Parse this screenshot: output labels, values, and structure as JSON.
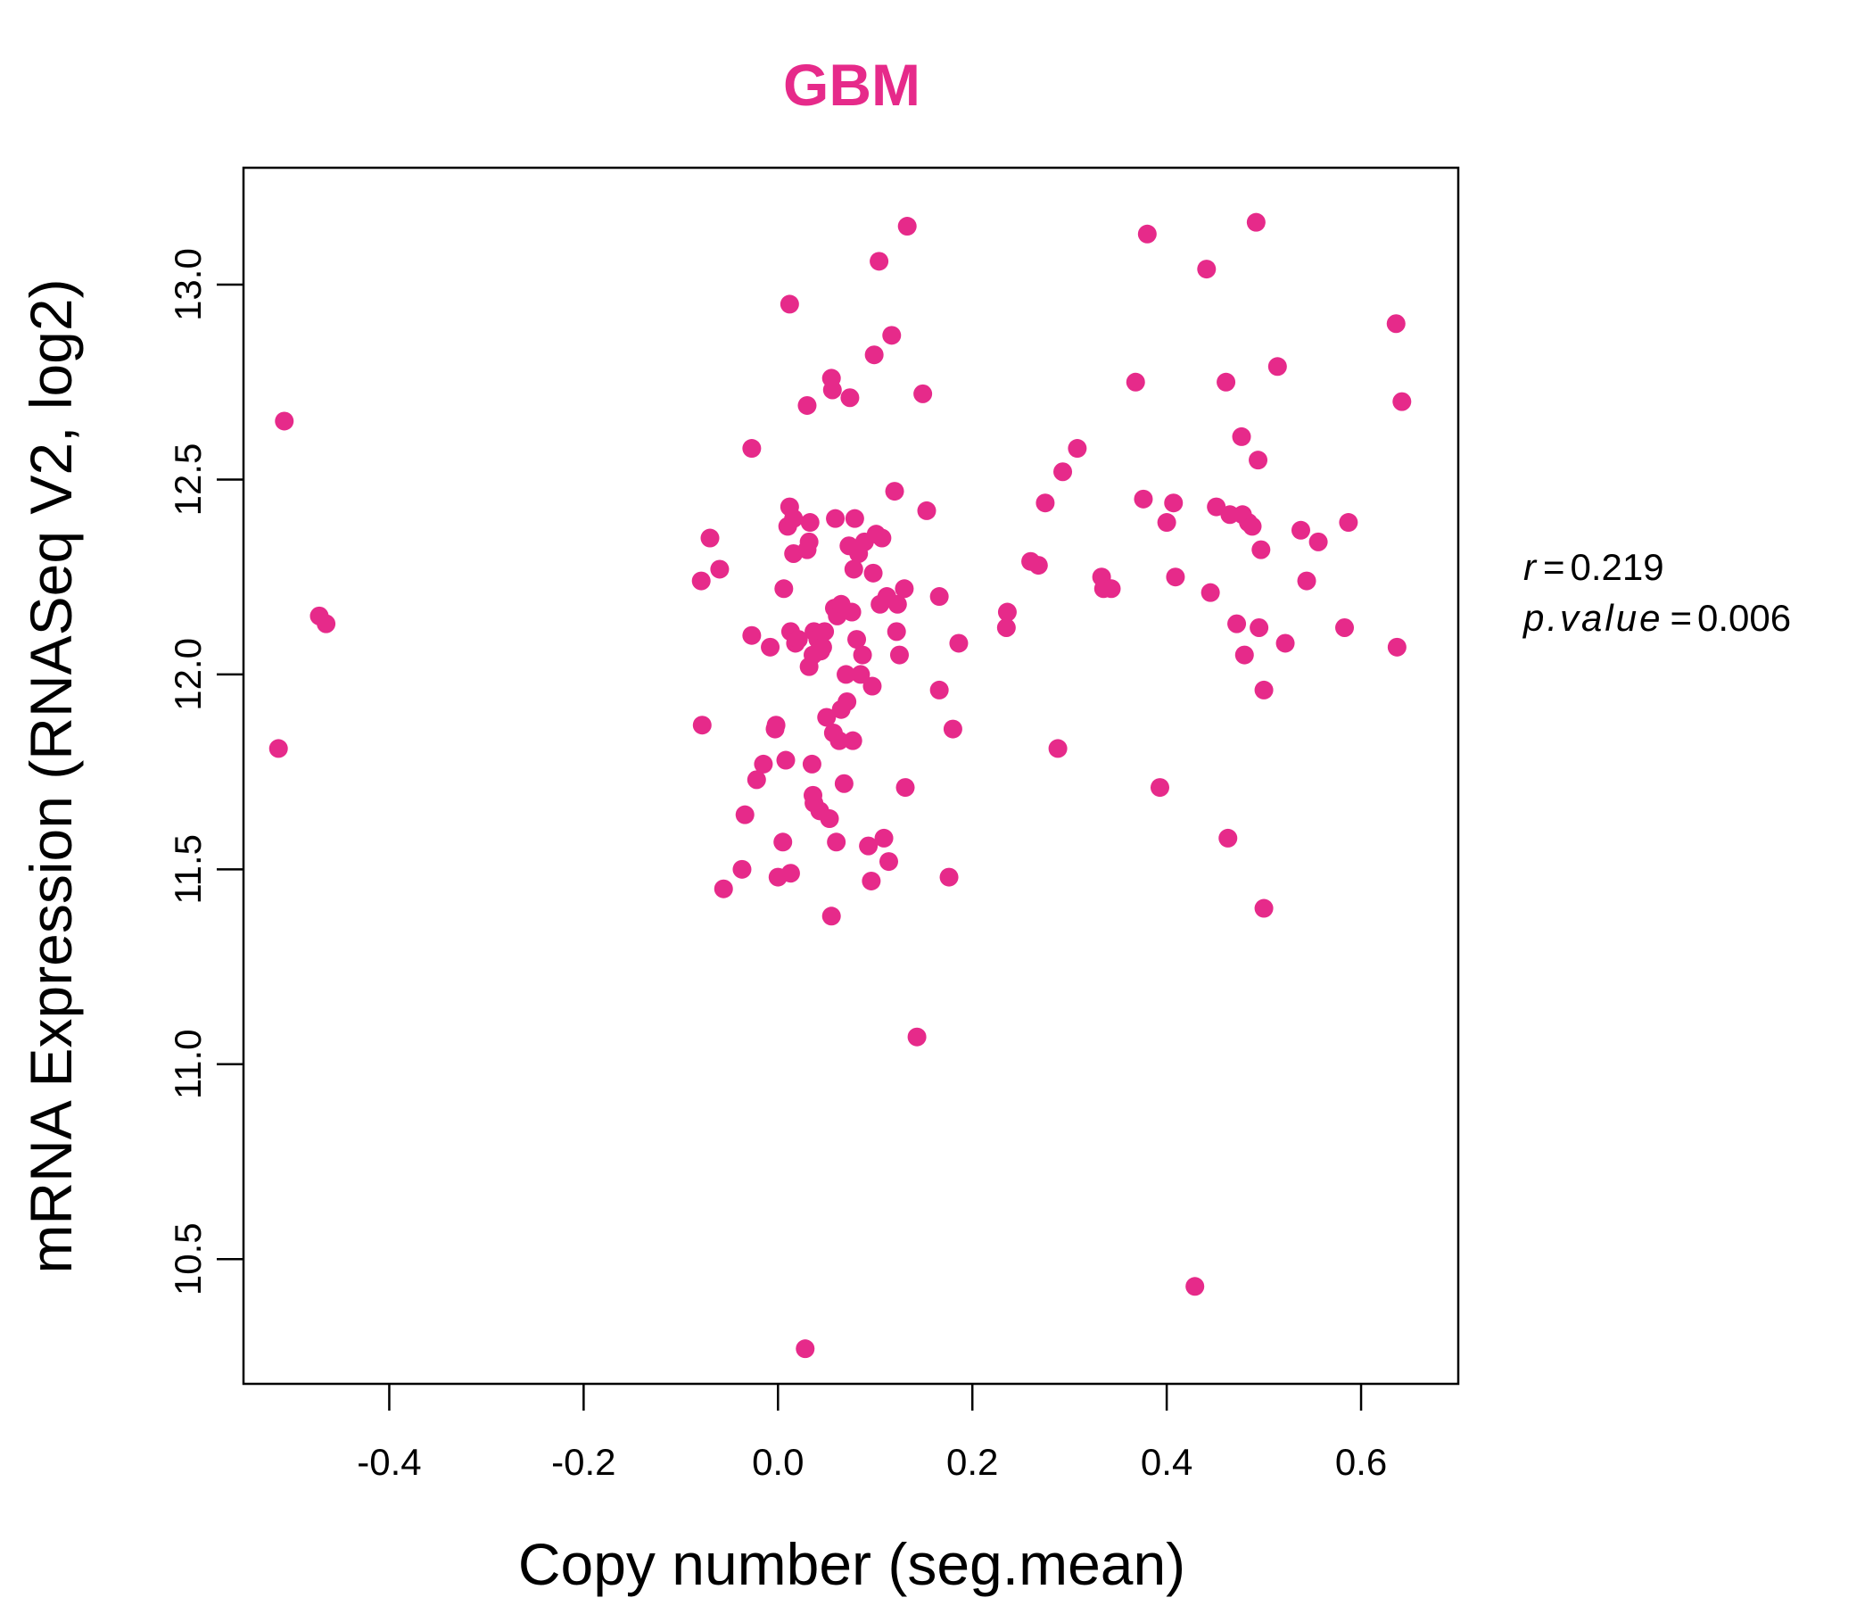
{
  "chart_data": {
    "type": "scatter",
    "title": "GBM",
    "xlabel": "Copy number (seg.mean)",
    "ylabel": "mRNA Expression (RNASeq V2, log2)",
    "xlim": [
      -0.55,
      0.7
    ],
    "ylim": [
      10.18,
      13.3
    ],
    "x_ticks": [
      -0.4,
      -0.2,
      0.0,
      0.2,
      0.4,
      0.6
    ],
    "x_tick_labels": [
      "-0.4",
      "-0.2",
      "0.0",
      "0.2",
      "0.4",
      "0.6"
    ],
    "y_ticks": [
      10.5,
      11.0,
      11.5,
      12.0,
      12.5,
      13.0
    ],
    "y_tick_labels": [
      "10.5",
      "11.0",
      "11.5",
      "12.0",
      "12.5",
      "13.0"
    ],
    "grid": false,
    "colors": {
      "points": "#E62A8A",
      "title": "#E62A8A",
      "axis": "#000000"
    },
    "stats": {
      "r_label": "r",
      "r_value": "0.219",
      "p_label": "p.value",
      "p_value": "0.006"
    },
    "points": [
      {
        "x": -0.508,
        "y": 12.65
      },
      {
        "x": -0.514,
        "y": 11.81
      },
      {
        "x": -0.472,
        "y": 12.15
      },
      {
        "x": -0.465,
        "y": 12.13
      },
      {
        "x": -0.078,
        "y": 11.87
      },
      {
        "x": -0.079,
        "y": 12.24
      },
      {
        "x": -0.07,
        "y": 12.35
      },
      {
        "x": -0.06,
        "y": 12.27
      },
      {
        "x": -0.056,
        "y": 11.45
      },
      {
        "x": -0.037,
        "y": 11.5
      },
      {
        "x": -0.034,
        "y": 11.64
      },
      {
        "x": -0.027,
        "y": 12.58
      },
      {
        "x": -0.027,
        "y": 12.1
      },
      {
        "x": -0.022,
        "y": 11.73
      },
      {
        "x": -0.015,
        "y": 11.77
      },
      {
        "x": -0.008,
        "y": 12.07
      },
      {
        "x": -0.003,
        "y": 11.86
      },
      {
        "x": -0.002,
        "y": 11.87
      },
      {
        "x": 0.0,
        "y": 11.48
      },
      {
        "x": 0.005,
        "y": 11.57
      },
      {
        "x": 0.006,
        "y": 12.22
      },
      {
        "x": 0.008,
        "y": 11.78
      },
      {
        "x": 0.01,
        "y": 12.38
      },
      {
        "x": 0.012,
        "y": 12.95
      },
      {
        "x": 0.012,
        "y": 12.43
      },
      {
        "x": 0.013,
        "y": 11.49
      },
      {
        "x": 0.013,
        "y": 12.11
      },
      {
        "x": 0.016,
        "y": 12.31
      },
      {
        "x": 0.016,
        "y": 12.4
      },
      {
        "x": 0.018,
        "y": 12.08
      },
      {
        "x": 0.021,
        "y": 12.09
      },
      {
        "x": 0.028,
        "y": 10.27
      },
      {
        "x": 0.03,
        "y": 12.69
      },
      {
        "x": 0.03,
        "y": 12.32
      },
      {
        "x": 0.032,
        "y": 12.34
      },
      {
        "x": 0.032,
        "y": 12.02
      },
      {
        "x": 0.033,
        "y": 12.39
      },
      {
        "x": 0.035,
        "y": 11.77
      },
      {
        "x": 0.036,
        "y": 12.05
      },
      {
        "x": 0.036,
        "y": 11.69
      },
      {
        "x": 0.037,
        "y": 12.11
      },
      {
        "x": 0.037,
        "y": 11.67
      },
      {
        "x": 0.041,
        "y": 12.09
      },
      {
        "x": 0.043,
        "y": 11.65
      },
      {
        "x": 0.044,
        "y": 12.06
      },
      {
        "x": 0.046,
        "y": 12.07
      },
      {
        "x": 0.048,
        "y": 12.11
      },
      {
        "x": 0.05,
        "y": 11.89
      },
      {
        "x": 0.053,
        "y": 11.63
      },
      {
        "x": 0.055,
        "y": 12.76
      },
      {
        "x": 0.055,
        "y": 11.38
      },
      {
        "x": 0.056,
        "y": 12.73
      },
      {
        "x": 0.057,
        "y": 11.85
      },
      {
        "x": 0.058,
        "y": 12.17
      },
      {
        "x": 0.059,
        "y": 12.4
      },
      {
        "x": 0.06,
        "y": 11.57
      },
      {
        "x": 0.061,
        "y": 12.15
      },
      {
        "x": 0.063,
        "y": 11.83
      },
      {
        "x": 0.065,
        "y": 11.91
      },
      {
        "x": 0.065,
        "y": 12.18
      },
      {
        "x": 0.068,
        "y": 11.72
      },
      {
        "x": 0.07,
        "y": 12.0
      },
      {
        "x": 0.071,
        "y": 11.93
      },
      {
        "x": 0.073,
        "y": 12.33
      },
      {
        "x": 0.074,
        "y": 12.71
      },
      {
        "x": 0.076,
        "y": 12.16
      },
      {
        "x": 0.077,
        "y": 11.83
      },
      {
        "x": 0.078,
        "y": 12.27
      },
      {
        "x": 0.079,
        "y": 12.4
      },
      {
        "x": 0.081,
        "y": 12.09
      },
      {
        "x": 0.083,
        "y": 12.31
      },
      {
        "x": 0.085,
        "y": 12.0
      },
      {
        "x": 0.087,
        "y": 12.05
      },
      {
        "x": 0.089,
        "y": 12.34
      },
      {
        "x": 0.093,
        "y": 11.56
      },
      {
        "x": 0.096,
        "y": 11.47
      },
      {
        "x": 0.097,
        "y": 11.97
      },
      {
        "x": 0.098,
        "y": 12.26
      },
      {
        "x": 0.099,
        "y": 12.82
      },
      {
        "x": 0.101,
        "y": 12.36
      },
      {
        "x": 0.104,
        "y": 13.06
      },
      {
        "x": 0.105,
        "y": 12.18
      },
      {
        "x": 0.107,
        "y": 12.35
      },
      {
        "x": 0.109,
        "y": 11.58
      },
      {
        "x": 0.112,
        "y": 12.2
      },
      {
        "x": 0.114,
        "y": 11.52
      },
      {
        "x": 0.117,
        "y": 12.87
      },
      {
        "x": 0.12,
        "y": 12.47
      },
      {
        "x": 0.122,
        "y": 12.11
      },
      {
        "x": 0.123,
        "y": 12.18
      },
      {
        "x": 0.125,
        "y": 12.05
      },
      {
        "x": 0.13,
        "y": 12.22
      },
      {
        "x": 0.131,
        "y": 11.71
      },
      {
        "x": 0.133,
        "y": 13.15
      },
      {
        "x": 0.143,
        "y": 11.07
      },
      {
        "x": 0.149,
        "y": 12.72
      },
      {
        "x": 0.153,
        "y": 12.42
      },
      {
        "x": 0.166,
        "y": 12.2
      },
      {
        "x": 0.166,
        "y": 11.96
      },
      {
        "x": 0.176,
        "y": 11.48
      },
      {
        "x": 0.18,
        "y": 11.86
      },
      {
        "x": 0.186,
        "y": 12.08
      },
      {
        "x": 0.235,
        "y": 12.12
      },
      {
        "x": 0.236,
        "y": 12.16
      },
      {
        "x": 0.26,
        "y": 12.29
      },
      {
        "x": 0.268,
        "y": 12.28
      },
      {
        "x": 0.275,
        "y": 12.44
      },
      {
        "x": 0.288,
        "y": 11.81
      },
      {
        "x": 0.293,
        "y": 12.52
      },
      {
        "x": 0.308,
        "y": 12.58
      },
      {
        "x": 0.333,
        "y": 12.25
      },
      {
        "x": 0.335,
        "y": 12.22
      },
      {
        "x": 0.343,
        "y": 12.22
      },
      {
        "x": 0.368,
        "y": 12.75
      },
      {
        "x": 0.376,
        "y": 12.45
      },
      {
        "x": 0.38,
        "y": 13.13
      },
      {
        "x": 0.393,
        "y": 11.71
      },
      {
        "x": 0.4,
        "y": 12.39
      },
      {
        "x": 0.407,
        "y": 12.44
      },
      {
        "x": 0.409,
        "y": 12.25
      },
      {
        "x": 0.429,
        "y": 10.43
      },
      {
        "x": 0.441,
        "y": 13.04
      },
      {
        "x": 0.445,
        "y": 12.21
      },
      {
        "x": 0.451,
        "y": 12.43
      },
      {
        "x": 0.461,
        "y": 12.75
      },
      {
        "x": 0.463,
        "y": 11.58
      },
      {
        "x": 0.465,
        "y": 12.41
      },
      {
        "x": 0.472,
        "y": 12.13
      },
      {
        "x": 0.477,
        "y": 12.61
      },
      {
        "x": 0.478,
        "y": 12.41
      },
      {
        "x": 0.48,
        "y": 12.05
      },
      {
        "x": 0.484,
        "y": 12.39
      },
      {
        "x": 0.488,
        "y": 12.38
      },
      {
        "x": 0.492,
        "y": 13.16
      },
      {
        "x": 0.494,
        "y": 12.55
      },
      {
        "x": 0.495,
        "y": 12.12
      },
      {
        "x": 0.497,
        "y": 12.32
      },
      {
        "x": 0.5,
        "y": 11.96
      },
      {
        "x": 0.5,
        "y": 11.4
      },
      {
        "x": 0.514,
        "y": 12.79
      },
      {
        "x": 0.522,
        "y": 12.08
      },
      {
        "x": 0.538,
        "y": 12.37
      },
      {
        "x": 0.544,
        "y": 12.24
      },
      {
        "x": 0.556,
        "y": 12.34
      },
      {
        "x": 0.583,
        "y": 12.12
      },
      {
        "x": 0.587,
        "y": 12.39
      },
      {
        "x": 0.636,
        "y": 12.9
      },
      {
        "x": 0.637,
        "y": 12.07
      },
      {
        "x": 0.642,
        "y": 12.7
      }
    ]
  }
}
